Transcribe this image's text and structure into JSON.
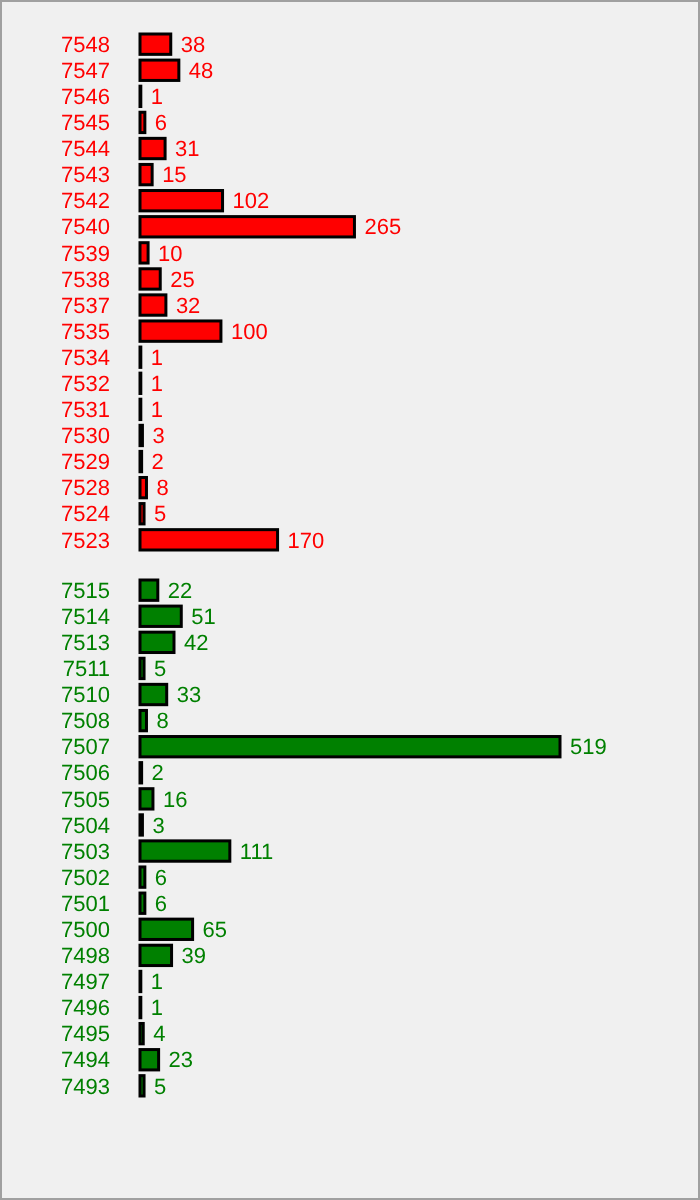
{
  "chart_data": [
    {
      "type": "bar",
      "orientation": "horizontal",
      "categories": [
        "7548",
        "7547",
        "7546",
        "7545",
        "7544",
        "7543",
        "7542",
        "7540",
        "7539",
        "7538",
        "7537",
        "7535",
        "7534",
        "7532",
        "7531",
        "7530",
        "7529",
        "7528",
        "7524",
        "7523"
      ],
      "values": [
        38,
        48,
        1,
        6,
        31,
        15,
        102,
        265,
        10,
        25,
        32,
        100,
        1,
        1,
        1,
        3,
        2,
        8,
        5,
        170
      ],
      "color": "#ff0000",
      "data_labels": true
    },
    {
      "type": "bar",
      "orientation": "horizontal",
      "categories": [
        "7515",
        "7514",
        "7513",
        "7511",
        "7510",
        "7508",
        "7507",
        "7506",
        "7505",
        "7504",
        "7503",
        "7502",
        "7501",
        "7500",
        "7498",
        "7497",
        "7496",
        "7495",
        "7494",
        "7493"
      ],
      "values": [
        22,
        51,
        42,
        5,
        33,
        8,
        519,
        2,
        16,
        3,
        111,
        6,
        6,
        65,
        39,
        1,
        1,
        4,
        23,
        5
      ],
      "color": "#008000",
      "data_labels": true
    }
  ]
}
